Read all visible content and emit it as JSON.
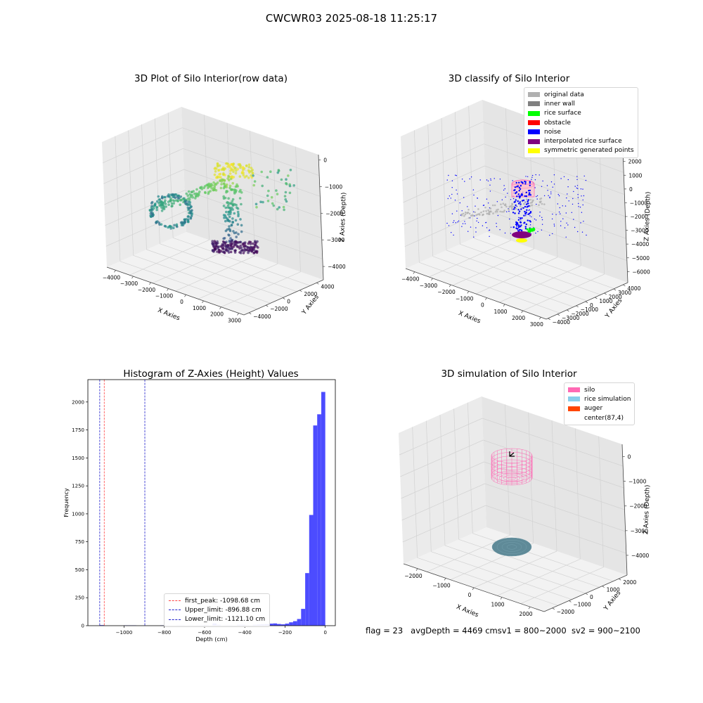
{
  "figure": {
    "title": "CWCWR03 2025-08-18 11:25:17"
  },
  "status": {
    "flag": "flag = 23",
    "avg_depth": "avgDepth = 4469 cm",
    "sv1": "sv1 = 800~2000",
    "sv2": "sv2 = 900~2100"
  },
  "chart_data": [
    {
      "type": "scatter",
      "projection": "3d",
      "title": "3D Plot of Silo Interior(row data)",
      "xlabel": "X Axies",
      "ylabel": "Y Axies",
      "zlabel": "Z Axies (Depth)",
      "x_ticks": [
        -4000,
        -3000,
        -2000,
        -1000,
        0,
        1000,
        2000,
        3000
      ],
      "y_ticks": [
        -4000,
        -2000,
        0,
        2000,
        4000
      ],
      "z_ticks": [
        0,
        -1000,
        -2000,
        -3000,
        -4000
      ],
      "colormap": "viridis",
      "colormap_stops": [
        "#440154",
        "#3b528b",
        "#21918c",
        "#5ec962",
        "#fde725"
      ],
      "grid": true
    },
    {
      "type": "scatter",
      "projection": "3d",
      "title": "3D classify of Silo Interior",
      "xlabel": "X Axies",
      "ylabel": "Y Axies",
      "zlabel": "Z Axies (Depth)",
      "x_ticks": [
        -4000,
        -3000,
        -2000,
        -1000,
        0,
        1000,
        2000,
        3000
      ],
      "y_ticks": [
        -4000,
        -3000,
        -2000,
        -1000,
        0,
        1000,
        2000,
        3000,
        4000
      ],
      "z_ticks": [
        2000,
        1000,
        0,
        -1000,
        -2000,
        -3000,
        -4000,
        -5000,
        -6000
      ],
      "legend_position": "top-right",
      "legend": [
        {
          "label": "original data",
          "color": "#b0b0b0"
        },
        {
          "label": "inner wall",
          "color": "#808080"
        },
        {
          "label": "rice surface",
          "color": "#00ff00"
        },
        {
          "label": "obstacle",
          "color": "#ff0000"
        },
        {
          "label": "noise",
          "color": "#0000ff"
        },
        {
          "label": "interpolated rice surface",
          "color": "#800080"
        },
        {
          "label": "symmetric generated points",
          "color": "#ffff00"
        }
      ],
      "grid": true
    },
    {
      "type": "bar",
      "title": "Histogram of Z-Axies (Height) Values",
      "xlabel": "Depth (cm)",
      "ylabel": "Frequency",
      "xlim": [
        -1180,
        50
      ],
      "ylim": [
        0,
        2200
      ],
      "x_ticks": [
        -1000,
        -800,
        -600,
        -400,
        -200,
        0
      ],
      "y_ticks": [
        0,
        250,
        500,
        750,
        1000,
        1250,
        1500,
        1750,
        2000
      ],
      "bar_color": "#4c4cff",
      "bins": [
        {
          "x0": -1121,
          "x1": -1100,
          "value": 5
        },
        {
          "x0": -1000,
          "x1": -980,
          "value": 3
        },
        {
          "x0": -980,
          "x1": -960,
          "value": 3
        },
        {
          "x0": -960,
          "x1": -940,
          "value": 3
        },
        {
          "x0": -820,
          "x1": -800,
          "value": 3
        },
        {
          "x0": -800,
          "x1": -780,
          "value": 3
        },
        {
          "x0": -740,
          "x1": -720,
          "value": 4
        },
        {
          "x0": -720,
          "x1": -700,
          "value": 4
        },
        {
          "x0": -680,
          "x1": -660,
          "value": 3
        },
        {
          "x0": -640,
          "x1": -620,
          "value": 3
        },
        {
          "x0": -620,
          "x1": -600,
          "value": 4
        },
        {
          "x0": -600,
          "x1": -580,
          "value": 5
        },
        {
          "x0": -560,
          "x1": -540,
          "value": 20
        },
        {
          "x0": -540,
          "x1": -520,
          "value": 8
        },
        {
          "x0": -500,
          "x1": -480,
          "value": 4
        },
        {
          "x0": -480,
          "x1": -460,
          "value": 4
        },
        {
          "x0": -440,
          "x1": -420,
          "value": 8
        },
        {
          "x0": -420,
          "x1": -400,
          "value": 8
        },
        {
          "x0": -400,
          "x1": -380,
          "value": 4
        },
        {
          "x0": -360,
          "x1": -340,
          "value": 8
        },
        {
          "x0": -340,
          "x1": -320,
          "value": 10
        },
        {
          "x0": -320,
          "x1": -300,
          "value": 12
        },
        {
          "x0": -300,
          "x1": -280,
          "value": 14
        },
        {
          "x0": -280,
          "x1": -260,
          "value": 18
        },
        {
          "x0": -260,
          "x1": -240,
          "value": 20
        },
        {
          "x0": -240,
          "x1": -220,
          "value": 15
        },
        {
          "x0": -220,
          "x1": -200,
          "value": 12
        },
        {
          "x0": -200,
          "x1": -180,
          "value": 18
        },
        {
          "x0": -180,
          "x1": -160,
          "value": 30
        },
        {
          "x0": -160,
          "x1": -140,
          "value": 40
        },
        {
          "x0": -140,
          "x1": -120,
          "value": 60
        },
        {
          "x0": -120,
          "x1": -100,
          "value": 150
        },
        {
          "x0": -100,
          "x1": -80,
          "value": 470
        },
        {
          "x0": -80,
          "x1": -60,
          "value": 990
        },
        {
          "x0": -60,
          "x1": -40,
          "value": 1790
        },
        {
          "x0": -40,
          "x1": -20,
          "value": 1890
        },
        {
          "x0": -20,
          "x1": 0,
          "value": 2090
        }
      ],
      "vlines": [
        {
          "x": -1098.68,
          "color": "#ff4444",
          "label": "first_peak: -1098.68 cm"
        },
        {
          "x": -896.88,
          "color": "#2222cc",
          "label": "Upper_limit: -896.88 cm"
        },
        {
          "x": -1121.1,
          "color": "#2222cc",
          "label": "Lower_limit: -1121.10 cm"
        }
      ],
      "legend_position": "bottom-center"
    },
    {
      "type": "scatter",
      "projection": "3d",
      "title": "3D simulation of Silo Interior",
      "xlabel": "X Axies",
      "ylabel": "Y Axies",
      "zlabel": "Z Axies (Depth)",
      "x_ticks": [
        -2000,
        -1000,
        0,
        1000,
        2000
      ],
      "y_ticks": [
        -2000,
        -1000,
        0,
        1000,
        2000
      ],
      "z_ticks": [
        0,
        -1000,
        -2000,
        -3000,
        -4000
      ],
      "legend_position": "top-right",
      "legend": [
        {
          "label": "silo",
          "color": "#ff69b4"
        },
        {
          "label": "rice simulation",
          "color": "#87ceeb"
        },
        {
          "label": "auger",
          "color": "#ff4500"
        },
        {
          "label": "center(87,4)",
          "color": "#ffffff"
        }
      ],
      "grid": true
    }
  ]
}
